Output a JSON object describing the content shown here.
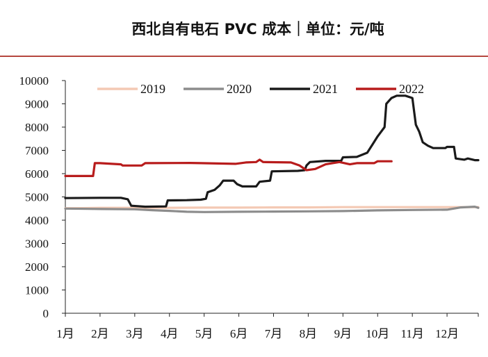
{
  "chart_data": {
    "type": "line",
    "title": "西北自有电石 PVC 成本｜单位：元/吨",
    "xlabel": "",
    "ylabel": "",
    "ylim": [
      0,
      10000
    ],
    "yticks": [
      0,
      1000,
      2000,
      3000,
      4000,
      5000,
      6000,
      7000,
      8000,
      9000,
      10000
    ],
    "x_tick_labels": [
      "1月",
      "2月",
      "3月",
      "4月",
      "5月",
      "6月",
      "7月",
      "8月",
      "9月",
      "10月",
      "11月",
      "12月"
    ],
    "x_range_months": [
      1,
      12.9
    ],
    "legend_position": "top",
    "grid": false,
    "series": [
      {
        "name": "2019",
        "color": "#f4c9b4",
        "points": [
          [
            1.0,
            4510
          ],
          [
            1.5,
            4520
          ],
          [
            2.0,
            4530
          ],
          [
            3.0,
            4530
          ],
          [
            4.0,
            4530
          ],
          [
            5.0,
            4540
          ],
          [
            6.0,
            4540
          ],
          [
            7.0,
            4550
          ],
          [
            8.0,
            4550
          ],
          [
            9.0,
            4560
          ],
          [
            10.0,
            4560
          ],
          [
            11.0,
            4560
          ],
          [
            12.0,
            4560
          ],
          [
            12.9,
            4560
          ]
        ]
      },
      {
        "name": "2020",
        "color": "#8c8c8c",
        "points": [
          [
            1.0,
            4500
          ],
          [
            2.0,
            4480
          ],
          [
            3.0,
            4470
          ],
          [
            3.5,
            4430
          ],
          [
            4.0,
            4400
          ],
          [
            4.5,
            4360
          ],
          [
            5.0,
            4350
          ],
          [
            6.0,
            4360
          ],
          [
            7.0,
            4370
          ],
          [
            8.0,
            4380
          ],
          [
            9.0,
            4390
          ],
          [
            10.0,
            4420
          ],
          [
            11.0,
            4440
          ],
          [
            12.0,
            4450
          ],
          [
            12.4,
            4550
          ],
          [
            12.8,
            4580
          ],
          [
            12.9,
            4530
          ]
        ]
      },
      {
        "name": "2021",
        "color": "#1a1a1a",
        "points": [
          [
            1.0,
            4950
          ],
          [
            2.0,
            4960
          ],
          [
            2.6,
            4960
          ],
          [
            2.8,
            4900
          ],
          [
            2.9,
            4620
          ],
          [
            3.3,
            4580
          ],
          [
            3.9,
            4590
          ],
          [
            3.95,
            4850
          ],
          [
            4.5,
            4860
          ],
          [
            4.9,
            4880
          ],
          [
            5.05,
            4920
          ],
          [
            5.1,
            5200
          ],
          [
            5.3,
            5300
          ],
          [
            5.45,
            5500
          ],
          [
            5.55,
            5700
          ],
          [
            5.85,
            5700
          ],
          [
            5.95,
            5550
          ],
          [
            6.1,
            5450
          ],
          [
            6.5,
            5450
          ],
          [
            6.6,
            5650
          ],
          [
            6.9,
            5700
          ],
          [
            6.95,
            6100
          ],
          [
            7.7,
            6120
          ],
          [
            7.9,
            6150
          ],
          [
            7.95,
            6350
          ],
          [
            8.05,
            6500
          ],
          [
            8.5,
            6550
          ],
          [
            8.95,
            6550
          ],
          [
            9.0,
            6700
          ],
          [
            9.4,
            6720
          ],
          [
            9.7,
            6900
          ],
          [
            9.85,
            7250
          ],
          [
            10.0,
            7600
          ],
          [
            10.2,
            8000
          ],
          [
            10.25,
            9000
          ],
          [
            10.4,
            9250
          ],
          [
            10.55,
            9350
          ],
          [
            10.8,
            9350
          ],
          [
            11.0,
            9250
          ],
          [
            11.1,
            8100
          ],
          [
            11.2,
            7800
          ],
          [
            11.3,
            7350
          ],
          [
            11.45,
            7200
          ],
          [
            11.6,
            7100
          ],
          [
            11.95,
            7100
          ],
          [
            12.0,
            7150
          ],
          [
            12.2,
            7150
          ],
          [
            12.25,
            6650
          ],
          [
            12.5,
            6600
          ],
          [
            12.6,
            6650
          ],
          [
            12.8,
            6580
          ],
          [
            12.9,
            6580
          ]
        ]
      },
      {
        "name": "2022",
        "color": "#b81c1c",
        "points": [
          [
            1.0,
            5900
          ],
          [
            1.8,
            5900
          ],
          [
            1.85,
            6450
          ],
          [
            2.0,
            6450
          ],
          [
            2.6,
            6400
          ],
          [
            2.65,
            6350
          ],
          [
            3.2,
            6350
          ],
          [
            3.3,
            6450
          ],
          [
            4.6,
            6460
          ],
          [
            4.9,
            6450
          ],
          [
            5.9,
            6420
          ],
          [
            6.2,
            6480
          ],
          [
            6.5,
            6500
          ],
          [
            6.6,
            6600
          ],
          [
            6.7,
            6500
          ],
          [
            7.5,
            6480
          ],
          [
            7.75,
            6350
          ],
          [
            7.95,
            6150
          ],
          [
            8.2,
            6200
          ],
          [
            8.5,
            6400
          ],
          [
            8.9,
            6500
          ],
          [
            9.2,
            6400
          ],
          [
            9.4,
            6450
          ],
          [
            9.9,
            6450
          ],
          [
            10.0,
            6530
          ],
          [
            10.4,
            6530
          ]
        ]
      }
    ]
  }
}
